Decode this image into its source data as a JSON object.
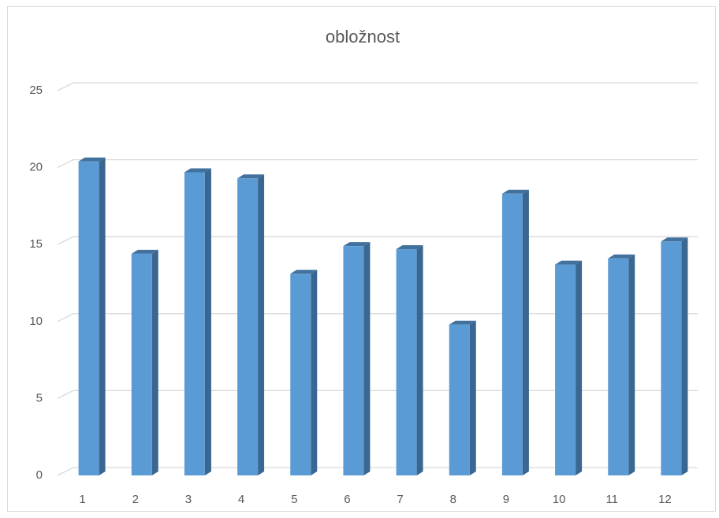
{
  "chart_data": {
    "type": "bar",
    "title": "obložnost",
    "categories": [
      "1",
      "2",
      "3",
      "4",
      "5",
      "6",
      "7",
      "8",
      "9",
      "10",
      "11",
      "12"
    ],
    "values": [
      20.4,
      14.4,
      19.7,
      19.3,
      13.1,
      14.9,
      14.7,
      9.8,
      18.3,
      13.7,
      14.1,
      15.2
    ],
    "color": "#5b9bd5",
    "ylim": [
      0,
      25
    ],
    "yticks": [
      0,
      5,
      10,
      15,
      20,
      25
    ],
    "grid": true
  }
}
